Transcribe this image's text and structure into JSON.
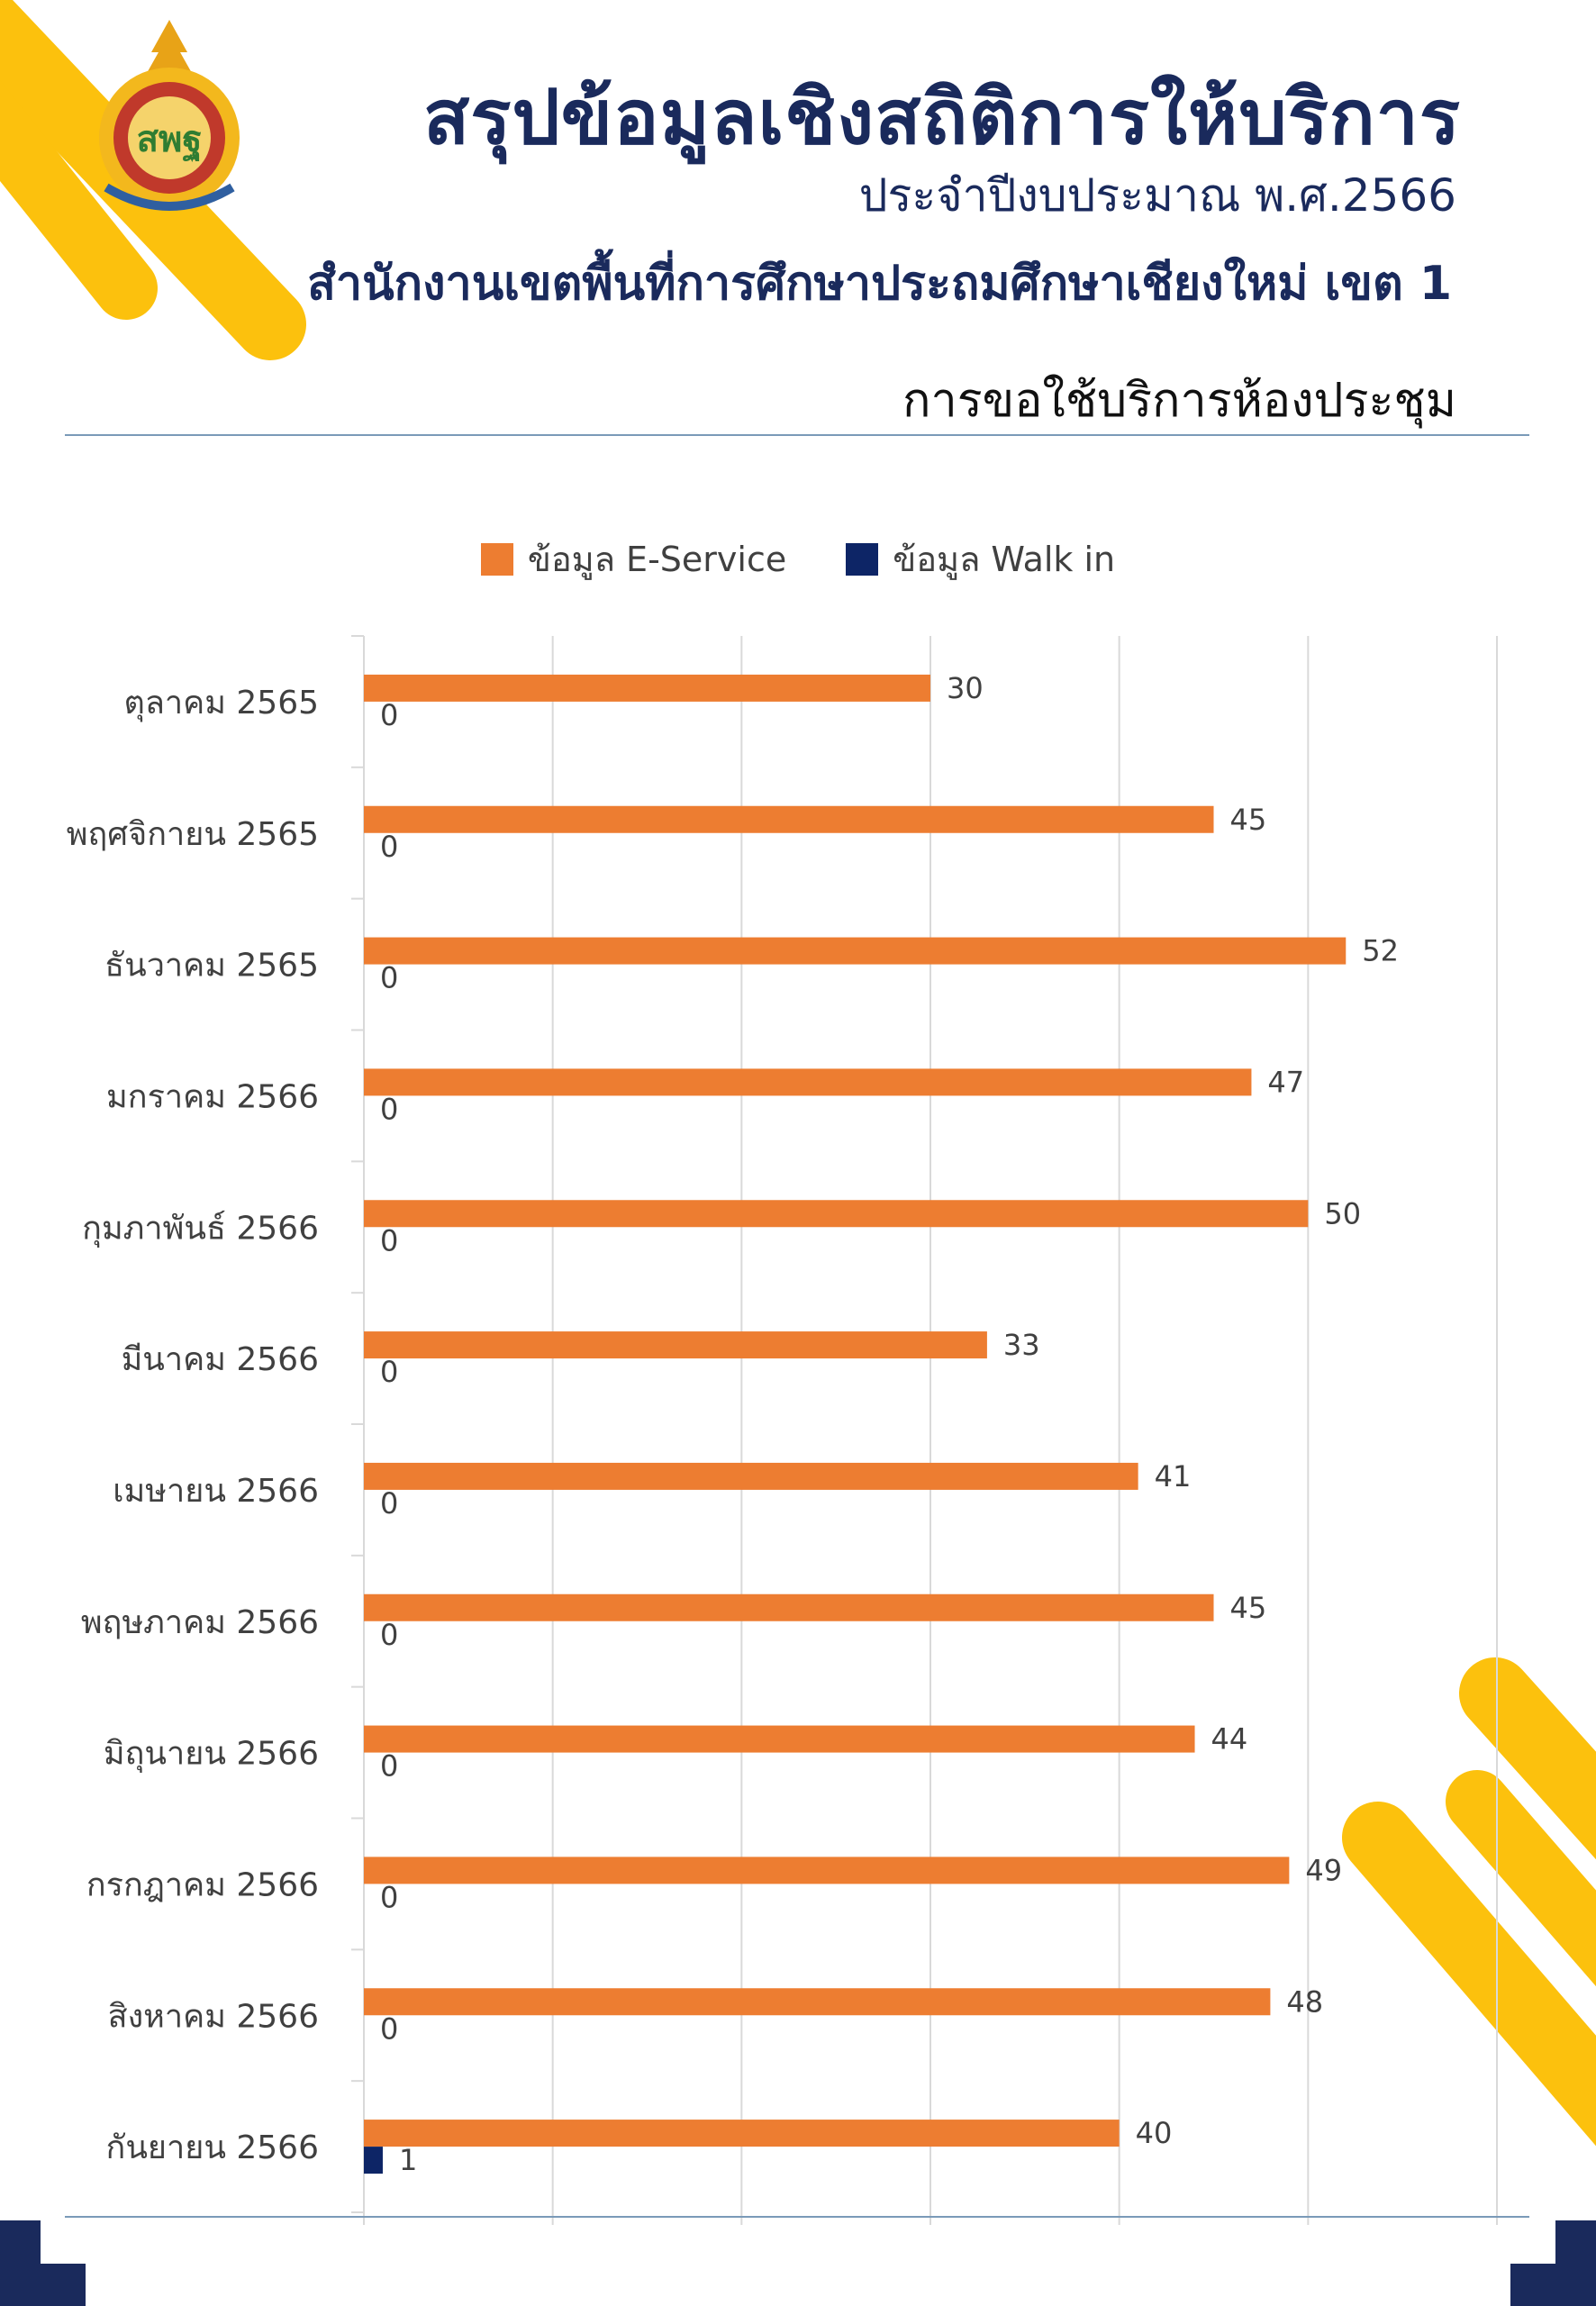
{
  "header": {
    "title": "สรุปข้อมูลเชิงสถิติการให้บริการ",
    "fiscal_year": "ประจำปีงบประมาณ พ.ศ.2566",
    "office": "สำนักงานเขตพื้นที่การศึกษาประถมศึกษาเชียงใหม่ เขต 1",
    "subtitle": "การขอใช้บริการห้องประชุม"
  },
  "colors": {
    "e_service": "#ed7d31",
    "walk_in": "#0d2566",
    "accent_yellow": "#fcc10d",
    "navy": "#1a2a5c"
  },
  "legend": [
    {
      "label": "ข้อมูล E-Service",
      "color": "#ed7d31"
    },
    {
      "label": "ข้อมูล Walk in",
      "color": "#0d2566"
    }
  ],
  "chart_data": {
    "type": "bar",
    "orientation": "horizontal",
    "title": "การขอใช้บริการห้องประชุม",
    "categories": [
      "ตุลาคม 2565",
      "พฤศจิกายน 2565",
      "ธันวาคม 2565",
      "มกราคม 2566",
      "กุมภาพันธ์ 2566",
      "มีนาคม 2566",
      "เมษายน 2566",
      "พฤษภาคม 2566",
      "มิถุนายน 2566",
      "กรกฎาคม 2566",
      "สิงหาคม 2566",
      "กันยายน 2566"
    ],
    "series": [
      {
        "name": "ข้อมูล E-Service",
        "values": [
          30,
          45,
          52,
          47,
          50,
          33,
          41,
          45,
          44,
          49,
          48,
          40
        ]
      },
      {
        "name": "ข้อมูล Walk in",
        "values": [
          0,
          0,
          0,
          0,
          0,
          0,
          0,
          0,
          0,
          0,
          0,
          1
        ]
      }
    ],
    "xlim": [
      0,
      60
    ],
    "grid": true,
    "legend_position": "top"
  }
}
